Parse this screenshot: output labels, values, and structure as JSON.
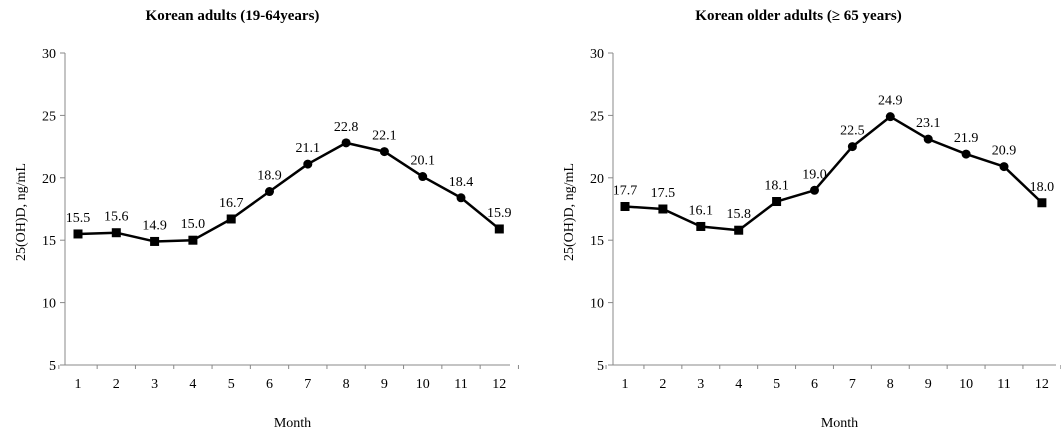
{
  "chart_data": [
    {
      "type": "line",
      "title": "Korean adults (19-64years)",
      "xlabel": "Month",
      "ylabel": "25(OH)D, ng/mL",
      "ylim": [
        5,
        30
      ],
      "yticks": [
        "5",
        "10",
        "15",
        "20",
        "25",
        "30"
      ],
      "categories": [
        "1",
        "2",
        "3",
        "4",
        "5",
        "6",
        "7",
        "8",
        "9",
        "10",
        "11",
        "12"
      ],
      "values": [
        15.5,
        15.6,
        14.9,
        15.0,
        16.7,
        18.9,
        21.1,
        22.8,
        22.1,
        20.1,
        18.4,
        15.9
      ],
      "data_labels": [
        "15.5",
        "15.6",
        "14.9",
        "15.0",
        "16.7",
        "18.9",
        "21.1",
        "22.8",
        "22.1",
        "20.1",
        "18.4",
        "15.9"
      ],
      "markers": [
        "square",
        "square",
        "square",
        "square",
        "square",
        "circle",
        "circle",
        "circle",
        "circle",
        "circle",
        "circle",
        "square"
      ],
      "grid": false
    },
    {
      "type": "line",
      "title": "Korean older adults (≥ 65 years)",
      "xlabel": "Month",
      "ylabel": "25(OH)D, ng/mL",
      "ylim": [
        5,
        30
      ],
      "yticks": [
        "5",
        "10",
        "15",
        "20",
        "25",
        "30"
      ],
      "categories": [
        "1",
        "2",
        "3",
        "4",
        "5",
        "6",
        "7",
        "8",
        "9",
        "10",
        "11",
        "12"
      ],
      "values": [
        17.7,
        17.5,
        16.1,
        15.8,
        18.1,
        19.0,
        22.5,
        24.9,
        23.1,
        21.9,
        20.9,
        18.0
      ],
      "data_labels": [
        "17.7",
        "17.5",
        "16.1",
        "15.8",
        "18.1",
        "19.0",
        "22.5",
        "24.9",
        "23.1",
        "21.9",
        "20.9",
        "18.0"
      ],
      "markers": [
        "square",
        "square",
        "square",
        "square",
        "square",
        "circle",
        "circle",
        "circle",
        "circle",
        "circle",
        "circle",
        "square"
      ],
      "grid": false
    }
  ]
}
